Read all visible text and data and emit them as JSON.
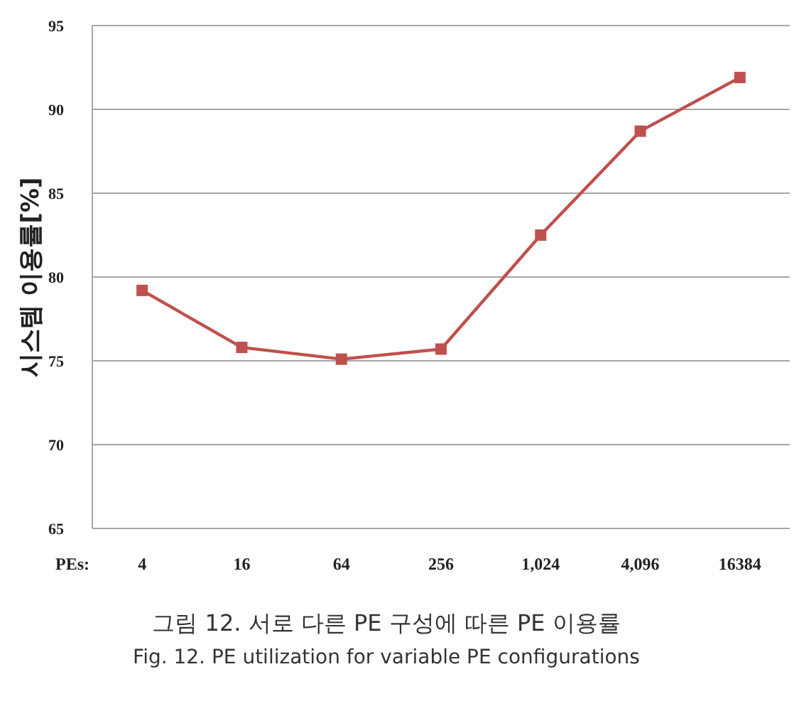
{
  "chart_data": {
    "type": "line",
    "ylabel": "시스템 이용률[%]",
    "xlabel": "PEs:",
    "categories": [
      "4",
      "16",
      "64",
      "256",
      "1,024",
      "4,096",
      "16384"
    ],
    "series": [
      {
        "color": "#c0504d",
        "values": [
          79.2,
          75.8,
          75.1,
          75.7,
          82.5,
          88.7,
          91.9
        ]
      }
    ],
    "ylim": [
      65,
      95
    ],
    "yticks": [
      65,
      70,
      75,
      80,
      85,
      90,
      95
    ],
    "grid": "y",
    "marker": "square",
    "line_style": "solid",
    "annotations": [
      "그림 12. 서로 다른 PE 구성에 따른 PE 이용률",
      "Fig. 12. PE utilization for variable PE configurations"
    ]
  }
}
